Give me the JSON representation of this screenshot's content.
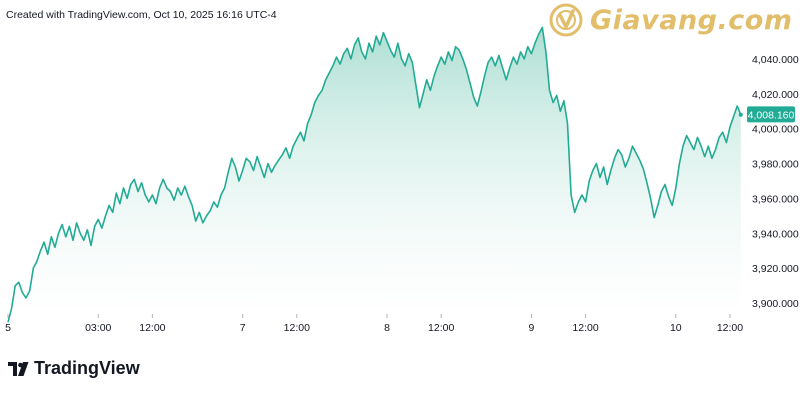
{
  "credit": "Created with TradingView.com, Oct 10, 2025 16:16 UTC-4",
  "brand": {
    "name": "Giavang.com",
    "color": "#e2be6a"
  },
  "footer_brand": "TradingView",
  "colors": {
    "line": "#22ab94",
    "area_top": "#a8ddd0",
    "area_bottom": "#ffffff",
    "badge": "#22ab94"
  },
  "chart_data": {
    "type": "area",
    "ylim": [
      3880,
      4060
    ],
    "y_ticks": [
      {
        "value": 4040,
        "label": "4,040.000"
      },
      {
        "value": 4020,
        "label": "4,020.000"
      },
      {
        "value": 4000,
        "label": "4,000.000"
      },
      {
        "value": 3980,
        "label": "3,980.000"
      },
      {
        "value": 3960,
        "label": "3,960.000"
      },
      {
        "value": 3940,
        "label": "3,940.000"
      },
      {
        "value": 3920,
        "label": "3,920.000"
      },
      {
        "value": 3900,
        "label": "3,900.000"
      }
    ],
    "x_ticks": [
      {
        "t": 0,
        "label": "5"
      },
      {
        "t": 15,
        "label": "03:00"
      },
      {
        "t": 24,
        "label": "12:00"
      },
      {
        "t": 39,
        "label": "7"
      },
      {
        "t": 48,
        "label": "12:00"
      },
      {
        "t": 63,
        "label": "8"
      },
      {
        "t": 72,
        "label": "12:00"
      },
      {
        "t": 87,
        "label": "9"
      },
      {
        "t": 96,
        "label": "12:00"
      },
      {
        "t": 111,
        "label": "10"
      },
      {
        "t": 120,
        "label": "12:00"
      }
    ],
    "x_range": [
      0,
      122
    ],
    "last_value": {
      "value": 4008.16,
      "label": "4,008.160"
    },
    "points": [
      [
        0,
        3889
      ],
      [
        0.6,
        3897
      ],
      [
        1.2,
        3910
      ],
      [
        1.8,
        3912
      ],
      [
        2.4,
        3906
      ],
      [
        3,
        3903
      ],
      [
        3.6,
        3907
      ],
      [
        4.2,
        3920
      ],
      [
        4.8,
        3924
      ],
      [
        5.4,
        3930
      ],
      [
        6,
        3935
      ],
      [
        6.6,
        3928
      ],
      [
        7.2,
        3938
      ],
      [
        7.8,
        3932
      ],
      [
        8.4,
        3940
      ],
      [
        9,
        3945
      ],
      [
        9.6,
        3938
      ],
      [
        10.2,
        3944
      ],
      [
        10.8,
        3936
      ],
      [
        11.4,
        3946
      ],
      [
        12,
        3940
      ],
      [
        12.6,
        3936
      ],
      [
        13.2,
        3942
      ],
      [
        13.8,
        3933
      ],
      [
        14.4,
        3944
      ],
      [
        15,
        3948
      ],
      [
        15.6,
        3943
      ],
      [
        16.2,
        3950
      ],
      [
        16.8,
        3956
      ],
      [
        17.4,
        3952
      ],
      [
        18,
        3963
      ],
      [
        18.6,
        3957
      ],
      [
        19.2,
        3966
      ],
      [
        19.8,
        3960
      ],
      [
        20.4,
        3968
      ],
      [
        21,
        3971
      ],
      [
        21.6,
        3964
      ],
      [
        22.2,
        3969
      ],
      [
        22.8,
        3962
      ],
      [
        23.4,
        3958
      ],
      [
        24,
        3962
      ],
      [
        24.6,
        3957
      ],
      [
        25.2,
        3966
      ],
      [
        25.8,
        3971
      ],
      [
        26.4,
        3966
      ],
      [
        27,
        3964
      ],
      [
        27.6,
        3959
      ],
      [
        28.2,
        3966
      ],
      [
        28.8,
        3962
      ],
      [
        29.4,
        3967
      ],
      [
        30,
        3961
      ],
      [
        30.6,
        3956
      ],
      [
        31.2,
        3947
      ],
      [
        31.8,
        3952
      ],
      [
        32.4,
        3946
      ],
      [
        33,
        3950
      ],
      [
        33.6,
        3953
      ],
      [
        34.2,
        3958
      ],
      [
        34.8,
        3955
      ],
      [
        35.4,
        3962
      ],
      [
        36,
        3966
      ],
      [
        36.6,
        3975
      ],
      [
        37.2,
        3983
      ],
      [
        37.8,
        3978
      ],
      [
        38.4,
        3970
      ],
      [
        39,
        3976
      ],
      [
        39.6,
        3983
      ],
      [
        40.2,
        3981
      ],
      [
        40.8,
        3976
      ],
      [
        41.4,
        3984
      ],
      [
        42,
        3978
      ],
      [
        42.6,
        3972
      ],
      [
        43.2,
        3980
      ],
      [
        43.8,
        3975
      ],
      [
        44.4,
        3979
      ],
      [
        45,
        3982
      ],
      [
        45.6,
        3985
      ],
      [
        46.2,
        3989
      ],
      [
        46.8,
        3983
      ],
      [
        47.4,
        3990
      ],
      [
        48,
        3994
      ],
      [
        48.6,
        3998
      ],
      [
        49.2,
        3993
      ],
      [
        49.8,
        4003
      ],
      [
        50.4,
        4008
      ],
      [
        51,
        4015
      ],
      [
        51.6,
        4019
      ],
      [
        52.2,
        4022
      ],
      [
        52.8,
        4028
      ],
      [
        53.4,
        4032
      ],
      [
        54,
        4036
      ],
      [
        54.6,
        4041
      ],
      [
        55.2,
        4037
      ],
      [
        55.8,
        4043
      ],
      [
        56.4,
        4046
      ],
      [
        57,
        4040
      ],
      [
        57.6,
        4048
      ],
      [
        58.2,
        4052
      ],
      [
        58.8,
        4044
      ],
      [
        59.4,
        4040
      ],
      [
        60,
        4049
      ],
      [
        60.6,
        4044
      ],
      [
        61.2,
        4053
      ],
      [
        61.8,
        4048
      ],
      [
        62.4,
        4055
      ],
      [
        63,
        4050
      ],
      [
        63.6,
        4045
      ],
      [
        64.2,
        4041
      ],
      [
        64.8,
        4049
      ],
      [
        65.4,
        4040
      ],
      [
        66,
        4036
      ],
      [
        66.6,
        4043
      ],
      [
        67.2,
        4038
      ],
      [
        67.8,
        4025
      ],
      [
        68.4,
        4012
      ],
      [
        69,
        4020
      ],
      [
        69.6,
        4028
      ],
      [
        70.2,
        4022
      ],
      [
        70.8,
        4030
      ],
      [
        71.4,
        4036
      ],
      [
        72,
        4041
      ],
      [
        72.6,
        4037
      ],
      [
        73.2,
        4044
      ],
      [
        73.8,
        4039
      ],
      [
        74.4,
        4047
      ],
      [
        75,
        4045
      ],
      [
        75.6,
        4040
      ],
      [
        76.2,
        4034
      ],
      [
        76.8,
        4026
      ],
      [
        77.4,
        4018
      ],
      [
        78,
        4013
      ],
      [
        78.6,
        4021
      ],
      [
        79.2,
        4030
      ],
      [
        79.8,
        4038
      ],
      [
        80.4,
        4041
      ],
      [
        81,
        4036
      ],
      [
        81.6,
        4042
      ],
      [
        82.2,
        4035
      ],
      [
        82.8,
        4028
      ],
      [
        83.4,
        4035
      ],
      [
        84,
        4041
      ],
      [
        84.6,
        4037
      ],
      [
        85.2,
        4044
      ],
      [
        85.8,
        4040
      ],
      [
        86.4,
        4047
      ],
      [
        87,
        4043
      ],
      [
        87.6,
        4049
      ],
      [
        88.2,
        4054
      ],
      [
        88.8,
        4058
      ],
      [
        89.4,
        4044
      ],
      [
        90,
        4022
      ],
      [
        90.6,
        4015
      ],
      [
        91.2,
        4019
      ],
      [
        91.8,
        4010
      ],
      [
        92.4,
        4016
      ],
      [
        93,
        4003
      ],
      [
        93.6,
        3962
      ],
      [
        94.2,
        3952
      ],
      [
        94.8,
        3958
      ],
      [
        95.4,
        3962
      ],
      [
        96,
        3958
      ],
      [
        96.6,
        3970
      ],
      [
        97.2,
        3976
      ],
      [
        97.8,
        3980
      ],
      [
        98.4,
        3972
      ],
      [
        99,
        3978
      ],
      [
        99.6,
        3968
      ],
      [
        100.2,
        3976
      ],
      [
        100.8,
        3983
      ],
      [
        101.4,
        3988
      ],
      [
        102,
        3985
      ],
      [
        102.6,
        3978
      ],
      [
        103.2,
        3983
      ],
      [
        103.8,
        3990
      ],
      [
        104.4,
        3986
      ],
      [
        105,
        3982
      ],
      [
        105.6,
        3977
      ],
      [
        106.2,
        3969
      ],
      [
        106.8,
        3960
      ],
      [
        107.4,
        3949
      ],
      [
        108,
        3956
      ],
      [
        108.6,
        3964
      ],
      [
        109.2,
        3968
      ],
      [
        109.8,
        3961
      ],
      [
        110.4,
        3956
      ],
      [
        111,
        3966
      ],
      [
        111.6,
        3980
      ],
      [
        112.2,
        3990
      ],
      [
        112.8,
        3996
      ],
      [
        113.4,
        3992
      ],
      [
        114,
        3988
      ],
      [
        114.6,
        3995
      ],
      [
        115.2,
        3990
      ],
      [
        115.8,
        3984
      ],
      [
        116.4,
        3990
      ],
      [
        117,
        3983
      ],
      [
        117.6,
        3988
      ],
      [
        118.2,
        3995
      ],
      [
        118.8,
        3998
      ],
      [
        119.4,
        3992
      ],
      [
        120,
        4001
      ],
      [
        120.6,
        4007
      ],
      [
        121.2,
        4013
      ],
      [
        121.8,
        4008
      ]
    ]
  }
}
